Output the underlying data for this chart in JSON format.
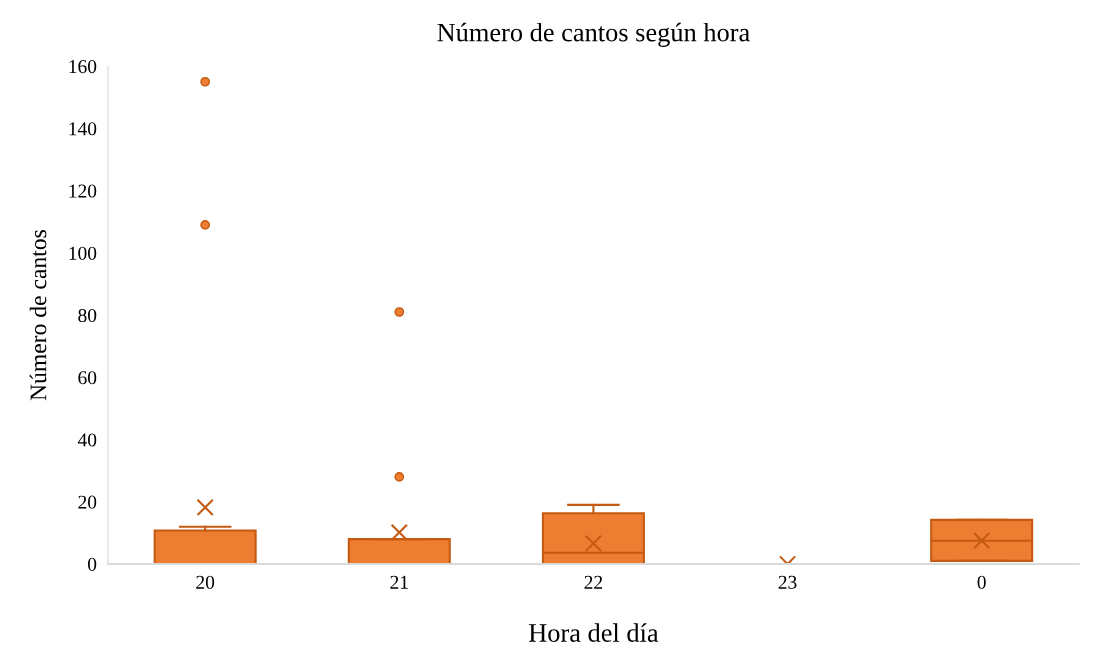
{
  "chart_data": {
    "type": "box",
    "title": "Número de cantos según hora",
    "xlabel": "Hora del día",
    "ylabel": "Número de cantos",
    "categories": [
      "20",
      "21",
      "22",
      "23",
      "0"
    ],
    "boxes": [
      {
        "low": 0,
        "q1": 0,
        "median": 0,
        "q3": 10.8,
        "high": 12,
        "mean": 18.2,
        "outliers": [
          155,
          109
        ]
      },
      {
        "low": 0,
        "q1": 0,
        "median": 0,
        "q3": 8,
        "high": 8,
        "mean": 10.2,
        "outliers": [
          81,
          28
        ]
      },
      {
        "low": 0,
        "q1": 0,
        "median": 3.6,
        "q3": 16.3,
        "high": 19,
        "mean": 6.6
      },
      {
        "low": 0,
        "q1": 0,
        "median": 0,
        "q3": 0,
        "high": 0,
        "mean": 0
      },
      {
        "low": 1,
        "q1": 1,
        "median": 7.5,
        "q3": 14.2,
        "high": 14.2,
        "mean": 7.5
      }
    ],
    "color": "#ed7d31",
    "ylim": [
      0,
      160
    ],
    "yticks": [
      0,
      20,
      40,
      60,
      80,
      100,
      120,
      140,
      160
    ],
    "grid": false,
    "legend": false
  }
}
